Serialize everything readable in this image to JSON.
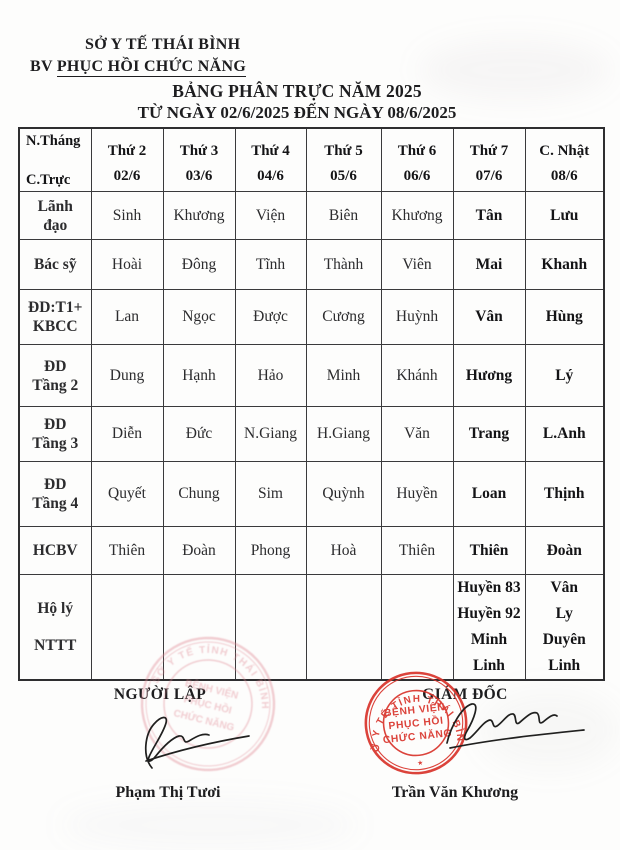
{
  "page": {
    "org_line1": "SỞ Y TẾ THÁI BÌNH",
    "org_line2_prefix": "BV ",
    "org_line2_name": "PHỤC HỒI CHỨC NĂNG",
    "title": "BẢNG PHÂN TRỰC NĂM 2025",
    "date_range": "TỪ NGÀY 02/6/2025 ĐẾN NGÀY 08/6/2025"
  },
  "table": {
    "corner_top": "N.Tháng",
    "corner_bottom": "C.Trực",
    "day_columns": [
      {
        "day": "Thứ 2",
        "date": "02/6"
      },
      {
        "day": "Thứ 3",
        "date": "03/6"
      },
      {
        "day": "Thứ 4",
        "date": "04/6"
      },
      {
        "day": "Thứ 5",
        "date": "05/6"
      },
      {
        "day": "Thứ 6",
        "date": "06/6"
      },
      {
        "day": "Thứ 7",
        "date": "07/6"
      },
      {
        "day": "C. Nhật",
        "date": "08/6"
      }
    ],
    "rows": [
      {
        "label": [
          "Lãnh",
          "đạo"
        ],
        "cells": [
          [
            "Sinh"
          ],
          [
            "Khương"
          ],
          [
            "Viện"
          ],
          [
            "Biên"
          ],
          [
            "Khương"
          ],
          [
            "Tân"
          ],
          [
            "Lưu"
          ]
        ]
      },
      {
        "label": [
          "Bác sỹ"
        ],
        "cells": [
          [
            "Hoài"
          ],
          [
            "Đông"
          ],
          [
            "Tĩnh"
          ],
          [
            "Thành"
          ],
          [
            "Viên"
          ],
          [
            "Mai"
          ],
          [
            "Khanh"
          ]
        ]
      },
      {
        "label": [
          "ĐD:T1+",
          "KBCC"
        ],
        "cells": [
          [
            "Lan"
          ],
          [
            "Ngọc"
          ],
          [
            "Được"
          ],
          [
            "Cương"
          ],
          [
            "Huỳnh"
          ],
          [
            "Vân"
          ],
          [
            "Hùng"
          ]
        ]
      },
      {
        "label": [
          "ĐD",
          "Tầng 2"
        ],
        "cells": [
          [
            "Dung"
          ],
          [
            "Hạnh"
          ],
          [
            "Hảo"
          ],
          [
            "Minh"
          ],
          [
            "Khánh"
          ],
          [
            "Hương"
          ],
          [
            "Lý"
          ]
        ]
      },
      {
        "label": [
          "ĐD",
          "Tầng 3"
        ],
        "cells": [
          [
            "Diễn"
          ],
          [
            "Đức"
          ],
          [
            "N.Giang"
          ],
          [
            "H.Giang"
          ],
          [
            "Văn"
          ],
          [
            "Trang"
          ],
          [
            "L.Anh"
          ]
        ]
      },
      {
        "label": [
          "ĐD",
          "Tầng 4"
        ],
        "cells": [
          [
            "Quyết"
          ],
          [
            "Chung"
          ],
          [
            "Sim"
          ],
          [
            "Quỳnh"
          ],
          [
            "Huyền"
          ],
          [
            "Loan"
          ],
          [
            "Thịnh"
          ]
        ]
      },
      {
        "label": [
          "HCBV"
        ],
        "cells": [
          [
            "Thiên"
          ],
          [
            "Đoàn"
          ],
          [
            "Phong"
          ],
          [
            "Hoà"
          ],
          [
            "Thiên"
          ],
          [
            "Thiên"
          ],
          [
            "Đoàn"
          ]
        ]
      },
      {
        "label": [
          "Hộ lý",
          "NTTT"
        ],
        "cells": [
          [],
          [],
          [],
          [],
          [],
          [
            "Huyền 83",
            "Huyền 92",
            "Minh",
            "Linh"
          ],
          [
            "Vân",
            "Ly",
            "Duyên",
            "Linh"
          ]
        ]
      }
    ]
  },
  "signatures": {
    "left_role": "NGƯỜI LẬP",
    "right_role": "GIÁM ĐỐC",
    "left_name": "Phạm Thị Tươi",
    "right_name": "Trần Văn Khương"
  },
  "stamp": {
    "ring_text": "SỞ Y TẾ TỈNH THÁI BÌNH",
    "line1": "BỆNH VIỆN",
    "line2": "PHỤC HỒI",
    "line3": "CHỨC NĂNG",
    "star_glyph": "★",
    "color": "#d9342b"
  },
  "colors": {
    "ink": "#1d1d1f",
    "stamp_red": "#d9342b",
    "stamp_ghost_pink": "#e08a95"
  }
}
